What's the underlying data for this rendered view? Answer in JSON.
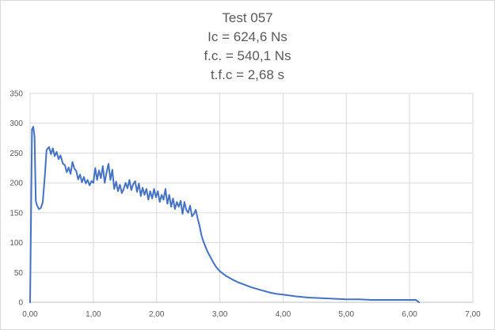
{
  "chart_data": {
    "type": "line",
    "title": "Test 057",
    "subtitle_lines": [
      "Ic = 624,6 Ns",
      "f.c. = 540,1 Ns",
      "t.f.c = 2,68 s"
    ],
    "xlabel": "",
    "ylabel": "",
    "xlim": [
      0,
      7
    ],
    "ylim": [
      0,
      350
    ],
    "x_ticks": [
      "0,00",
      "1,00",
      "2,00",
      "3,00",
      "4,00",
      "5,00",
      "6,00",
      "7,00"
    ],
    "y_ticks": [
      "0",
      "50",
      "100",
      "150",
      "200",
      "250",
      "300",
      "350"
    ],
    "grid": true,
    "legend": "none",
    "series_color": "#4472c4",
    "series": [
      {
        "x": [
          0.0,
          0.03,
          0.05,
          0.07,
          0.09,
          0.11,
          0.14,
          0.17,
          0.2,
          0.23,
          0.26,
          0.28,
          0.3,
          0.33,
          0.36,
          0.39,
          0.42,
          0.45,
          0.48,
          0.52,
          0.55,
          0.58,
          0.61,
          0.64,
          0.67,
          0.7,
          0.73,
          0.76,
          0.79,
          0.82,
          0.85,
          0.88,
          0.91,
          0.94,
          0.97,
          1.0,
          1.03,
          1.06,
          1.09,
          1.12,
          1.15,
          1.18,
          1.21,
          1.24,
          1.27,
          1.3,
          1.33,
          1.36,
          1.39,
          1.42,
          1.45,
          1.48,
          1.51,
          1.54,
          1.57,
          1.6,
          1.63,
          1.66,
          1.69,
          1.72,
          1.75,
          1.78,
          1.81,
          1.84,
          1.87,
          1.9,
          1.93,
          1.96,
          1.99,
          2.02,
          2.05,
          2.08,
          2.11,
          2.14,
          2.17,
          2.2,
          2.23,
          2.26,
          2.29,
          2.32,
          2.35,
          2.38,
          2.41,
          2.44,
          2.47,
          2.5,
          2.53,
          2.56,
          2.59,
          2.62,
          2.65,
          2.68,
          2.71,
          2.74,
          2.77,
          2.8,
          2.85,
          2.9,
          2.95,
          3.0,
          3.1,
          3.2,
          3.3,
          3.4,
          3.5,
          3.6,
          3.7,
          3.8,
          3.9,
          4.0,
          4.2,
          4.4,
          4.6,
          4.8,
          5.0,
          5.2,
          5.4,
          5.6,
          5.8,
          6.0,
          6.1,
          6.15
        ],
        "y": [
          0,
          290,
          294,
          278,
          170,
          162,
          156,
          158,
          168,
          208,
          255,
          258,
          260,
          248,
          258,
          245,
          252,
          240,
          246,
          232,
          230,
          218,
          226,
          215,
          235,
          224,
          220,
          206,
          214,
          201,
          210,
          199,
          205,
          196,
          203,
          200,
          225,
          205,
          221,
          208,
          228,
          200,
          218,
          232,
          205,
          222,
          190,
          202,
          186,
          197,
          183,
          190,
          200,
          191,
          205,
          188,
          198,
          203,
          185,
          199,
          178,
          192,
          180,
          190,
          172,
          186,
          174,
          190,
          176,
          186,
          168,
          180,
          172,
          190,
          165,
          180,
          160,
          174,
          156,
          168,
          160,
          170,
          148,
          168,
          155,
          150,
          162,
          144,
          148,
          155,
          140,
          128,
          112,
          102,
          94,
          86,
          76,
          66,
          58,
          52,
          44,
          38,
          33,
          29,
          25,
          22,
          19,
          16,
          14,
          13,
          10,
          8,
          7,
          6,
          5,
          5,
          4,
          4,
          4,
          4,
          4,
          0
        ]
      }
    ]
  }
}
